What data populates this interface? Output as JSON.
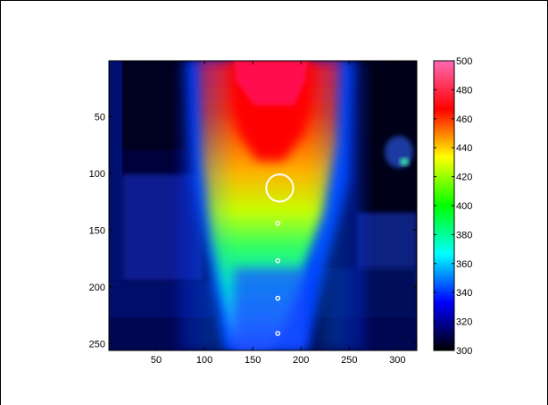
{
  "chart_data": {
    "type": "heatmap",
    "title": "",
    "xlabel": "",
    "ylabel": "",
    "xlim": [
      1,
      320
    ],
    "ylim": [
      1,
      256
    ],
    "x_ticks": [
      50,
      100,
      150,
      200,
      250,
      300
    ],
    "y_ticks": [
      50,
      100,
      150,
      200,
      250
    ],
    "colorbar": {
      "colormap": "jet",
      "range": [
        300,
        500
      ],
      "ticks": [
        300,
        320,
        340,
        360,
        380,
        400,
        420,
        440,
        460,
        480,
        500
      ],
      "colors": [
        "#000000",
        "#0000ff",
        "#00ffff",
        "#00ff00",
        "#ffff00",
        "#ff0000",
        "#ff69b4"
      ]
    },
    "annotations": [
      {
        "shape": "circle",
        "x": 178,
        "y": 113,
        "r": 14,
        "color": "#ffffff"
      },
      {
        "shape": "circle",
        "x": 176,
        "y": 144,
        "r": 2,
        "color": "#ffffff"
      },
      {
        "shape": "circle",
        "x": 176,
        "y": 177,
        "r": 2,
        "color": "#ffffff"
      },
      {
        "shape": "circle",
        "x": 176,
        "y": 210,
        "r": 2,
        "color": "#ffffff"
      },
      {
        "shape": "circle",
        "x": 176,
        "y": 241,
        "r": 2,
        "color": "#ffffff"
      }
    ]
  }
}
